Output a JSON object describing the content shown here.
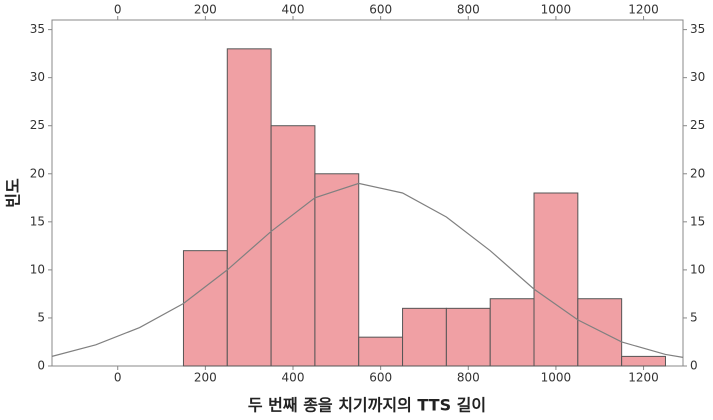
{
  "chart_data": {
    "type": "histogram",
    "x_label": "두 번째 종을 치기까지의 TTS 길이",
    "y_label": "빈도",
    "bins": [
      150,
      250,
      350,
      450,
      550,
      650,
      750,
      850,
      950,
      1050,
      1150,
      1250
    ],
    "counts": [
      12,
      33,
      25,
      20,
      3,
      6,
      6,
      7,
      18,
      7,
      1
    ],
    "color": "#f0a0a4",
    "edge_color": "#555555",
    "fit": {
      "color": "#808080",
      "x": [
        -150,
        -50,
        50,
        150,
        250,
        350,
        450,
        550,
        650,
        750,
        850,
        950,
        1050,
        1150,
        1250,
        1290
      ],
      "values": [
        1,
        2.2,
        4,
        6.5,
        10,
        14,
        17.5,
        19,
        18,
        15.5,
        12,
        8,
        4.8,
        2.5,
        1.2,
        0.9
      ]
    },
    "xlim": [
      -150,
      1290
    ],
    "ylim": [
      0,
      36
    ],
    "xticks": [
      0,
      200,
      400,
      600,
      800,
      1000,
      1200
    ],
    "yticks": [
      0,
      5,
      10,
      15,
      20,
      25,
      30,
      35
    ]
  }
}
